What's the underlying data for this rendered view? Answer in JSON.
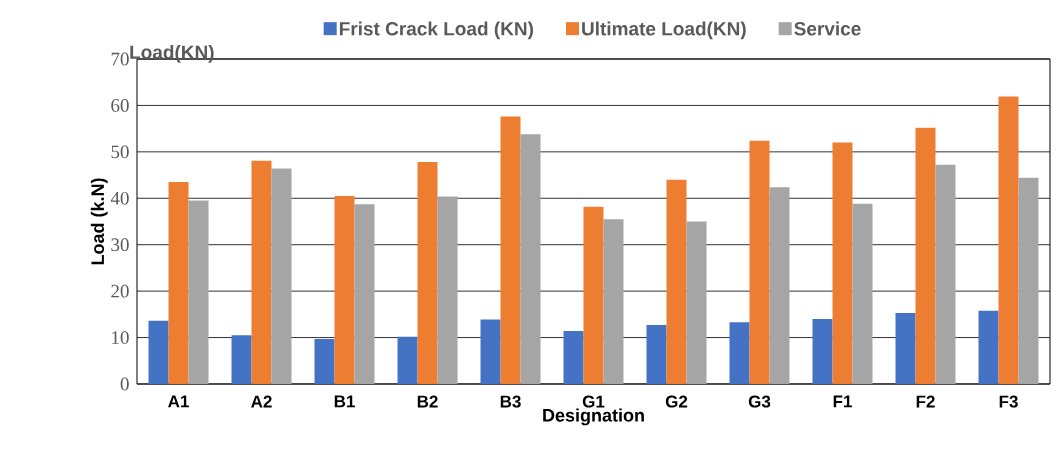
{
  "chart_data": {
    "type": "bar",
    "xlabel": "Designation",
    "ylabel": "Load (k.N)",
    "annotations": [
      "Load(KN)"
    ],
    "categories": [
      "A1",
      "A2",
      "B1",
      "B2",
      "B3",
      "G1",
      "G2",
      "G3",
      "F1",
      "F2",
      "F3"
    ],
    "series": [
      {
        "name": "Frist Crack Load (KN)",
        "color": "#4472c4",
        "values": [
          13.6,
          10.5,
          9.7,
          10.2,
          13.9,
          11.4,
          12.7,
          13.3,
          14.0,
          15.3,
          15.8
        ]
      },
      {
        "name": "Ultimate Load(KN)",
        "color": "#ed7d31",
        "values": [
          43.5,
          48.1,
          40.5,
          47.8,
          57.6,
          38.2,
          44.0,
          52.4,
          52.0,
          55.2,
          61.9
        ]
      },
      {
        "name": "Service",
        "color": "#a5a5a5",
        "values": [
          39.5,
          46.4,
          38.7,
          40.4,
          53.8,
          35.5,
          35.0,
          42.4,
          38.8,
          47.2,
          44.4
        ]
      }
    ],
    "ylim": [
      0,
      70
    ],
    "yticks": [
      0,
      10,
      20,
      30,
      40,
      50,
      60,
      70
    ],
    "grid": "y",
    "legend": "top"
  }
}
